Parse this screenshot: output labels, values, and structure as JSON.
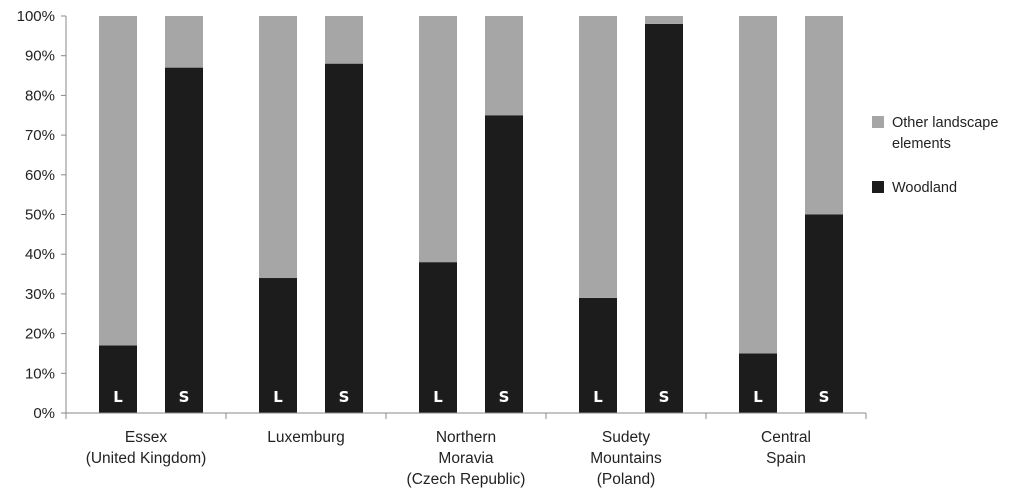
{
  "chart_data": {
    "type": "bar",
    "stacked": true,
    "title": "",
    "xlabel": "",
    "ylabel": "",
    "ylim": [
      0,
      100
    ],
    "y_ticks": [
      "0%",
      "10%",
      "20%",
      "30%",
      "40%",
      "50%",
      "60%",
      "70%",
      "80%",
      "90%",
      "100%"
    ],
    "grid": false,
    "legend_position": "right",
    "groups": [
      {
        "lines": [
          "Essex",
          "(United Kingdom)"
        ]
      },
      {
        "lines": [
          "Luxemburg"
        ]
      },
      {
        "lines": [
          "Northern",
          "Moravia",
          "(Czech Republic)"
        ]
      },
      {
        "lines": [
          "Sudety",
          "Mountains",
          "(Poland)"
        ]
      },
      {
        "lines": [
          "Central",
          "Spain"
        ]
      }
    ],
    "bar_labels": [
      "L",
      "S",
      "L",
      "S",
      "L",
      "S",
      "L",
      "S",
      "L",
      "S"
    ],
    "series": [
      {
        "name": "Woodland",
        "color": "#1c1c1c",
        "values": [
          17,
          87,
          34,
          88,
          38,
          75,
          29,
          98,
          15,
          50
        ]
      },
      {
        "name": "Other landscape elements",
        "color": "#a6a6a6",
        "values": [
          83,
          13,
          66,
          12,
          62,
          25,
          71,
          2,
          85,
          50
        ]
      }
    ],
    "legend": [
      {
        "lines": [
          "Other landscape",
          "elements"
        ],
        "color": "#a6a6a6"
      },
      {
        "lines": [
          "Woodland"
        ],
        "color": "#1c1c1c"
      }
    ]
  }
}
